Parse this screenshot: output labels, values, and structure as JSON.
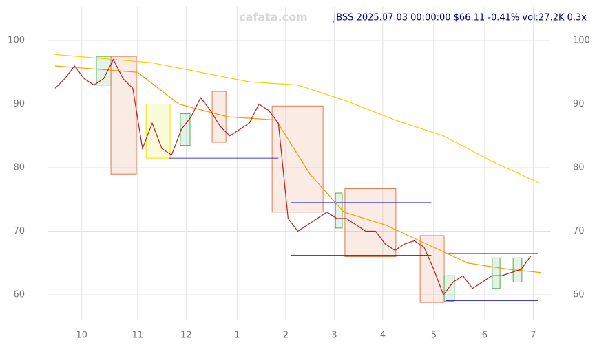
{
  "chart_data": {
    "type": "line",
    "title": "JBSS 2025.07.03 00:00:00 $66.11 -0.41% vol:27.2K 0.3x",
    "watermark": "cafata.com",
    "xlim": [
      0,
      200
    ],
    "ylim": [
      58,
      105
    ],
    "xticks": [
      {
        "value": 11,
        "label": "10"
      },
      {
        "value": 34,
        "label": "11"
      },
      {
        "value": 54,
        "label": "12"
      },
      {
        "value": 75,
        "label": "1"
      },
      {
        "value": 95,
        "label": "2"
      },
      {
        "value": 115,
        "label": "3"
      },
      {
        "value": 135,
        "label": "4"
      },
      {
        "value": 156,
        "label": "5"
      },
      {
        "value": 177,
        "label": "6"
      },
      {
        "value": 197,
        "label": "7"
      }
    ],
    "yticks": [
      60,
      70,
      80,
      90,
      100
    ],
    "grid": true,
    "series": [
      {
        "color": "#ffcc00",
        "x": [
          0,
          40,
          80,
          100,
          120,
          140,
          160,
          180,
          200
        ],
        "values": [
          97.8,
          96.5,
          93.5,
          93,
          90.5,
          87.5,
          85,
          81,
          77.5
        ]
      },
      {
        "color": "#ff9900",
        "x": [
          0,
          34,
          51,
          71,
          91,
          105,
          119,
          136,
          153,
          170,
          187,
          200
        ],
        "values": [
          96,
          95,
          90,
          88,
          87.5,
          79,
          73,
          71,
          68,
          65,
          64,
          63.5
        ]
      },
      {
        "color": "#b22222",
        "x": [
          0,
          4,
          8,
          12,
          16,
          20,
          24,
          28,
          32,
          36,
          40,
          44,
          48,
          52,
          56,
          60,
          64,
          68,
          72,
          76,
          80,
          84,
          88,
          92,
          96,
          100,
          104,
          108,
          112,
          116,
          120,
          124,
          128,
          132,
          136,
          140,
          144,
          148,
          152,
          156,
          160,
          164,
          168,
          172,
          176,
          180,
          184,
          188,
          192,
          196
        ],
        "values": [
          92.5,
          94,
          96,
          94,
          93,
          94,
          97,
          94,
          92.5,
          83,
          87,
          83,
          82,
          86,
          88,
          91,
          89,
          86.5,
          85,
          86,
          87,
          90,
          89,
          87,
          72,
          70,
          71,
          72,
          73,
          72,
          72,
          71,
          70,
          70,
          68,
          67,
          68,
          68.5,
          67.5,
          64,
          60,
          62,
          63,
          61,
          62,
          63,
          63,
          63.5,
          64,
          66.1
        ]
      }
    ],
    "boxes": [
      {
        "x": [
          17,
          23
        ],
        "y": [
          93,
          97.5
        ],
        "color": "#4caf50"
      },
      {
        "x": [
          23,
          33.5
        ],
        "y": [
          79,
          97.5
        ],
        "color": "#e07b50"
      },
      {
        "x": [
          37.5,
          47.4
        ],
        "y": [
          81.5,
          90
        ],
        "color": "#e6e600"
      },
      {
        "x": [
          51.6,
          55.6
        ],
        "y": [
          83.5,
          88.5
        ],
        "color": "#4caf50"
      },
      {
        "x": [
          64.7,
          70.4
        ],
        "y": [
          84,
          92
        ],
        "color": "#e07b50"
      },
      {
        "x": [
          89.4,
          110.4
        ],
        "y": [
          73,
          89.7
        ],
        "color": "#e07b50"
      },
      {
        "x": [
          115.5,
          118.3
        ],
        "y": [
          70.5,
          76
        ],
        "color": "#4caf50"
      },
      {
        "x": [
          119.4,
          140.4
        ],
        "y": [
          66,
          76.7
        ],
        "color": "#e07b50"
      },
      {
        "x": [
          150.4,
          160.3
        ],
        "y": [
          58.8,
          69.3
        ],
        "color": "#e07b50"
      },
      {
        "x": [
          160.3,
          164.5
        ],
        "y": [
          59,
          63
        ],
        "color": "#4caf50"
      },
      {
        "x": [
          180.1,
          183.3
        ],
        "y": [
          61,
          65.8
        ],
        "color": "#4caf50"
      },
      {
        "x": [
          188.7,
          192.3
        ],
        "y": [
          62,
          65.8
        ],
        "color": "#4caf50"
      }
    ],
    "levels": [
      {
        "x": [
          47,
          92
        ],
        "y": 91.3
      },
      {
        "x": [
          47,
          92
        ],
        "y": 81.5
      },
      {
        "x": [
          97,
          155
        ],
        "y": 74.5
      },
      {
        "x": [
          97,
          155
        ],
        "y": 66.2
      },
      {
        "x": [
          161,
          199
        ],
        "y": 66.5
      },
      {
        "x": [
          161,
          199
        ],
        "y": 59.1
      }
    ],
    "level_color": "#0000cc"
  }
}
